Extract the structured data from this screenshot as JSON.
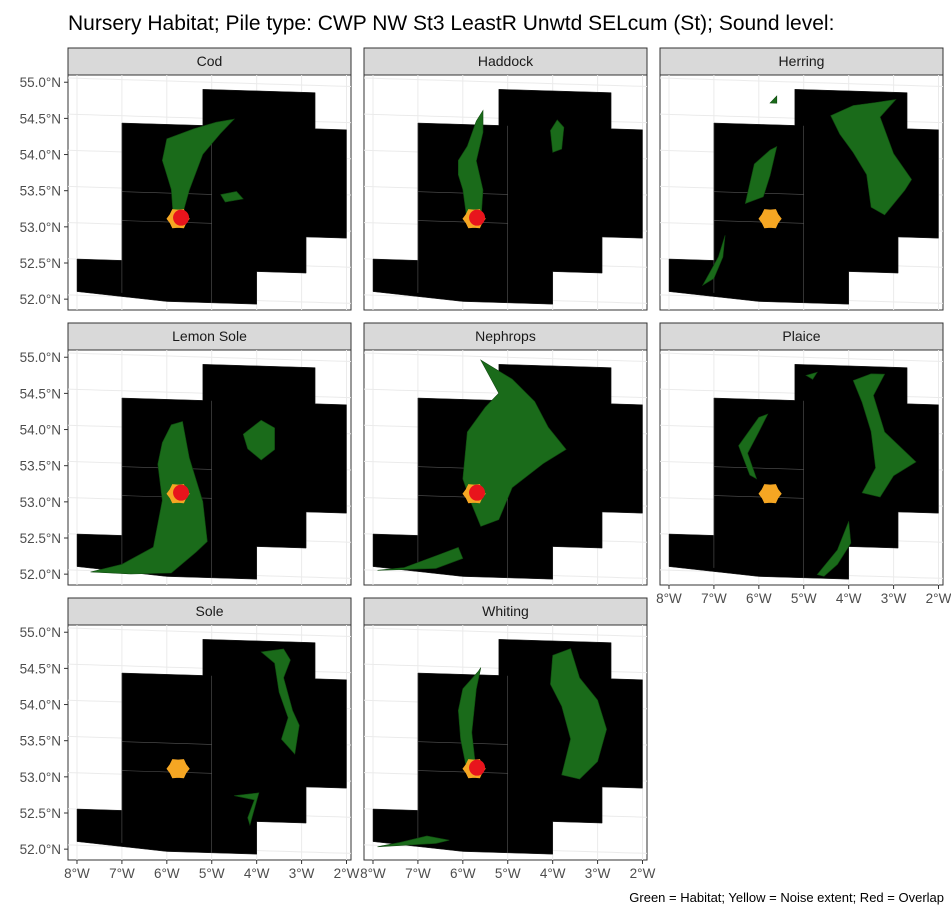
{
  "title": "Nursery Habitat; Pile type: CWP NW St3 LeastR Unwtd SELcum (St); Sound level:",
  "caption": "Green = Habitat; Yellow = Noise extent; Red = Overlap",
  "colors": {
    "habitat": "#1a6b1a",
    "noise": "#f5a623",
    "overlap": "#e8141c",
    "land": "#000000",
    "strip_bg": "#d9d9d9",
    "grid": "#ebebeb"
  },
  "chart_data": {
    "type": "map",
    "facet_layout": "3 columns x 3 rows",
    "x_ticks": [
      "8°W",
      "7°W",
      "6°W",
      "5°W",
      "4°W",
      "3°W",
      "2°W"
    ],
    "x_tick_values": [
      -8,
      -7,
      -6,
      -5,
      -4,
      -3,
      -2
    ],
    "y_ticks": [
      "55.0°N",
      "54.5°N",
      "54.0°N",
      "53.5°N",
      "53.0°N",
      "52.5°N",
      "52.0°N"
    ],
    "y_tick_values": [
      55.0,
      54.5,
      54.0,
      53.5,
      53.0,
      52.5,
      52.0
    ],
    "xlim": [
      -8.2,
      -1.9
    ],
    "ylim": [
      51.85,
      55.1
    ],
    "noise_center": [
      -5.75,
      53.1
    ],
    "study_area": [
      [
        -8,
        52.5
      ],
      [
        -7,
        52.5
      ],
      [
        -7,
        54.4
      ],
      [
        -5.2,
        54.4
      ],
      [
        -5.2,
        54.9
      ],
      [
        -2.7,
        54.9
      ],
      [
        -2.7,
        54.4
      ],
      [
        -2.0,
        54.4
      ],
      [
        -2.0,
        52.9
      ],
      [
        -2.9,
        52.9
      ],
      [
        -2.9,
        52.4
      ],
      [
        -4.0,
        52.4
      ],
      [
        -4.0,
        51.95
      ],
      [
        -6.0,
        51.95
      ],
      [
        -8,
        52.05
      ]
    ],
    "panels": [
      {
        "name": "Cod",
        "noise": "overlap",
        "habitat": [
          [
            [
              -6.1,
              53.9
            ],
            [
              -6.0,
              54.2
            ],
            [
              -5.4,
              54.35
            ],
            [
              -4.9,
              54.45
            ],
            [
              -4.5,
              54.5
            ],
            [
              -4.8,
              54.3
            ],
            [
              -5.2,
              54.0
            ],
            [
              -5.5,
              53.5
            ],
            [
              -5.7,
              53.05
            ],
            [
              -5.85,
              53.05
            ],
            [
              -5.9,
              53.5
            ],
            [
              -6.05,
              53.8
            ]
          ],
          [
            [
              -4.8,
              53.45
            ],
            [
              -4.45,
              53.5
            ],
            [
              -4.3,
              53.4
            ],
            [
              -4.7,
              53.35
            ]
          ]
        ]
      },
      {
        "name": "Haddock",
        "noise": "overlap",
        "habitat": [
          [
            [
              -6.1,
              53.9
            ],
            [
              -5.9,
              54.1
            ],
            [
              -5.7,
              54.45
            ],
            [
              -5.55,
              54.6
            ],
            [
              -5.55,
              54.3
            ],
            [
              -5.7,
              53.9
            ],
            [
              -5.55,
              53.5
            ],
            [
              -5.6,
              53.05
            ],
            [
              -5.9,
              53.05
            ],
            [
              -6.0,
              53.5
            ],
            [
              -6.1,
              53.7
            ]
          ],
          [
            [
              -4.0,
              54.05
            ],
            [
              -3.8,
              54.1
            ],
            [
              -3.75,
              54.4
            ],
            [
              -3.9,
              54.5
            ],
            [
              -4.05,
              54.35
            ]
          ]
        ]
      },
      {
        "name": "Herring",
        "noise": "noise",
        "habitat": [
          [
            [
              -6.3,
              53.3
            ],
            [
              -6.1,
              53.85
            ],
            [
              -5.75,
              54.05
            ],
            [
              -5.6,
              54.1
            ],
            [
              -5.75,
              53.7
            ],
            [
              -5.9,
              53.4
            ]
          ],
          [
            [
              -7.25,
              52.15
            ],
            [
              -6.9,
              52.55
            ],
            [
              -6.75,
              52.85
            ],
            [
              -6.8,
              52.55
            ],
            [
              -7.0,
              52.25
            ]
          ],
          [
            [
              -4.4,
              54.55
            ],
            [
              -3.9,
              54.7
            ],
            [
              -3.4,
              54.75
            ],
            [
              -2.95,
              54.8
            ],
            [
              -3.3,
              54.55
            ],
            [
              -3.0,
              54.05
            ],
            [
              -2.6,
              53.7
            ],
            [
              -2.75,
              53.55
            ],
            [
              -3.2,
              53.2
            ],
            [
              -3.5,
              53.3
            ],
            [
              -3.6,
              53.75
            ],
            [
              -3.9,
              54.05
            ],
            [
              -4.2,
              54.3
            ]
          ],
          [
            [
              -5.75,
              54.7
            ],
            [
              -5.6,
              54.8
            ],
            [
              -5.6,
              54.7
            ]
          ]
        ]
      },
      {
        "name": "Lemon Sole",
        "noise": "overlap",
        "habitat": [
          [
            [
              -6.1,
              53.8
            ],
            [
              -5.9,
              54.05
            ],
            [
              -5.65,
              54.1
            ],
            [
              -5.5,
              53.6
            ],
            [
              -5.2,
              53.0
            ],
            [
              -5.1,
              52.45
            ],
            [
              -5.35,
              52.3
            ],
            [
              -5.9,
              52.0
            ],
            [
              -6.8,
              51.97
            ],
            [
              -7.7,
              51.98
            ],
            [
              -7.0,
              52.1
            ],
            [
              -6.3,
              52.35
            ],
            [
              -6.1,
              53.0
            ],
            [
              -6.2,
              53.5
            ]
          ],
          [
            [
              -4.3,
              53.95
            ],
            [
              -3.9,
              54.15
            ],
            [
              -3.6,
              54.05
            ],
            [
              -3.6,
              53.75
            ],
            [
              -3.9,
              53.6
            ],
            [
              -4.2,
              53.75
            ]
          ]
        ]
      },
      {
        "name": "Nephrops",
        "noise": "overlap",
        "habitat": [
          [
            [
              -6.0,
              53.3
            ],
            [
              -5.9,
              53.95
            ],
            [
              -5.5,
              54.3
            ],
            [
              -5.2,
              54.5
            ],
            [
              -5.6,
              54.95
            ],
            [
              -4.9,
              54.7
            ],
            [
              -4.4,
              54.4
            ],
            [
              -4.1,
              54.05
            ],
            [
              -3.7,
              53.75
            ],
            [
              -4.2,
              53.55
            ],
            [
              -4.9,
              53.2
            ],
            [
              -5.2,
              52.75
            ],
            [
              -5.6,
              52.65
            ],
            [
              -5.8,
              52.95
            ]
          ],
          [
            [
              -7.9,
              52.0
            ],
            [
              -6.6,
              52.05
            ],
            [
              -6.0,
              52.2
            ],
            [
              -6.1,
              52.35
            ],
            [
              -6.5,
              52.25
            ],
            [
              -7.3,
              52.05
            ]
          ]
        ]
      },
      {
        "name": "Plaice",
        "noise": "noise",
        "habitat": [
          [
            [
              -6.45,
              53.75
            ],
            [
              -6.0,
              54.15
            ],
            [
              -5.8,
              54.2
            ],
            [
              -6.0,
              53.95
            ],
            [
              -6.25,
              53.65
            ],
            [
              -6.05,
              53.3
            ],
            [
              -6.2,
              53.35
            ]
          ],
          [
            [
              -4.7,
              52.0
            ],
            [
              -4.25,
              52.35
            ],
            [
              -4.0,
              52.75
            ],
            [
              -3.95,
              52.45
            ],
            [
              -4.25,
              52.15
            ],
            [
              -4.55,
              51.98
            ]
          ],
          [
            [
              -3.9,
              54.7
            ],
            [
              -3.5,
              54.8
            ],
            [
              -3.2,
              54.8
            ],
            [
              -3.45,
              54.5
            ],
            [
              -3.2,
              54.0
            ],
            [
              -2.5,
              53.6
            ],
            [
              -3.0,
              53.4
            ],
            [
              -3.3,
              53.1
            ],
            [
              -3.7,
              53.15
            ],
            [
              -3.4,
              53.5
            ],
            [
              -3.5,
              54.0
            ],
            [
              -3.7,
              54.4
            ]
          ],
          [
            [
              -4.95,
              54.75
            ],
            [
              -4.7,
              54.8
            ],
            [
              -4.8,
              54.7
            ]
          ]
        ]
      },
      {
        "name": "Sole",
        "noise": "noise",
        "habitat": [
          [
            [
              -3.9,
              54.75
            ],
            [
              -3.4,
              54.8
            ],
            [
              -3.25,
              54.65
            ],
            [
              -3.4,
              54.4
            ],
            [
              -3.2,
              53.95
            ],
            [
              -3.05,
              53.75
            ],
            [
              -3.15,
              53.35
            ],
            [
              -3.45,
              53.55
            ],
            [
              -3.3,
              53.85
            ],
            [
              -3.5,
              54.2
            ],
            [
              -3.6,
              54.6
            ]
          ],
          [
            [
              -4.15,
              52.35
            ],
            [
              -3.95,
              52.8
            ],
            [
              -4.5,
              52.75
            ],
            [
              -4.05,
              52.7
            ],
            [
              -4.2,
              52.45
            ]
          ]
        ]
      },
      {
        "name": "Whiting",
        "noise": "overlap",
        "habitat": [
          [
            [
              -6.1,
              53.9
            ],
            [
              -6.0,
              54.2
            ],
            [
              -5.65,
              54.45
            ],
            [
              -5.6,
              54.5
            ],
            [
              -5.7,
              54.2
            ],
            [
              -5.8,
              53.6
            ],
            [
              -5.7,
              53.05
            ],
            [
              -5.9,
              53.05
            ],
            [
              -6.05,
              53.5
            ]
          ],
          [
            [
              -4.0,
              54.7
            ],
            [
              -3.6,
              54.8
            ],
            [
              -3.5,
              54.6
            ],
            [
              -3.4,
              54.4
            ],
            [
              -3.0,
              54.1
            ],
            [
              -2.8,
              53.7
            ],
            [
              -3.0,
              53.25
            ],
            [
              -3.4,
              53.0
            ],
            [
              -3.8,
              53.05
            ],
            [
              -3.6,
              53.55
            ],
            [
              -3.8,
              54.0
            ],
            [
              -4.05,
              54.3
            ]
          ],
          [
            [
              -7.9,
              51.98
            ],
            [
              -6.6,
              52.05
            ],
            [
              -6.3,
              52.1
            ],
            [
              -6.8,
              52.15
            ],
            [
              -7.4,
              52.05
            ]
          ]
        ]
      }
    ]
  }
}
